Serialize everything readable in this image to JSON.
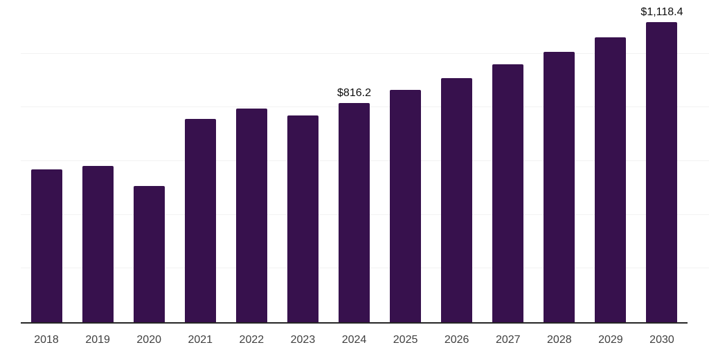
{
  "chart_data": {
    "type": "bar",
    "title": "",
    "xlabel": "",
    "ylabel": "",
    "categories": [
      "2018",
      "2019",
      "2020",
      "2021",
      "2022",
      "2023",
      "2024",
      "2025",
      "2026",
      "2027",
      "2028",
      "2029",
      "2030"
    ],
    "values": [
      568,
      583,
      508,
      758,
      797,
      771,
      816.2,
      866,
      910,
      961,
      1008,
      1062,
      1118.4
    ],
    "annotations": [
      {
        "category": "2024",
        "label": "$816.2"
      },
      {
        "category": "2030",
        "label": "$1,118.4"
      }
    ],
    "ylim": [
      0,
      1200
    ],
    "gridline_values": [
      200,
      400,
      600,
      800,
      1000,
      1200
    ],
    "grid": true,
    "legend": null,
    "y_axis_labels_visible": false,
    "colors": {
      "bar": "#37114d",
      "gridline": "#f2f2f2",
      "axis_line": "#262626",
      "tick_label": "#404040",
      "data_label": "#0d0d0d",
      "background": "#ffffff"
    }
  }
}
